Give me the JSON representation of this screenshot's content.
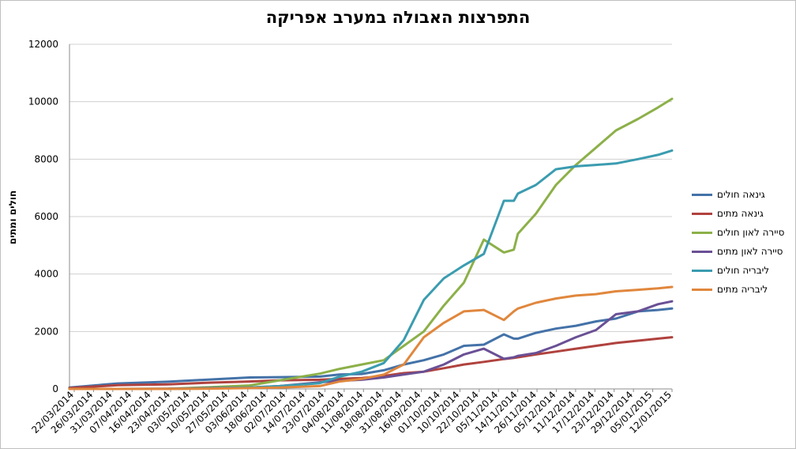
{
  "chart_data": {
    "type": "line",
    "title": "התפרצות האבולה במערב אפריקה",
    "xlabel": "",
    "ylabel": "חולים ומתים",
    "ylim": [
      0,
      12000
    ],
    "yticks": [
      "0",
      "2000",
      "4000",
      "6000",
      "8000",
      "10000",
      "12000"
    ],
    "grid": "horizontal",
    "legend_position": "right",
    "x": [
      "2014-03-22",
      "2014-04-15",
      "2014-05-10",
      "2014-06-01",
      "2014-06-20",
      "2014-07-05",
      "2014-07-25",
      "2014-08-04",
      "2014-08-15",
      "2014-08-26",
      "2014-09-05",
      "2014-09-15",
      "2014-09-25",
      "2014-10-05",
      "2014-10-15",
      "2014-10-25",
      "2014-10-30",
      "2014-11-01",
      "2014-11-10",
      "2014-11-20",
      "2014-11-30",
      "2014-12-10",
      "2014-12-20",
      "2014-12-31",
      "2015-01-10",
      "2015-01-17"
    ],
    "xticks": [
      "22/03/2014",
      "26/03/2014",
      "31/03/2014",
      "07/04/2014",
      "16/04/2014",
      "23/04/2014",
      "03/05/2014",
      "10/05/2014",
      "27/05/2014",
      "03/06/2014",
      "18/06/2014",
      "02/07/2014",
      "14/07/2014",
      "23/07/2014",
      "04/08/2014",
      "11/08/2014",
      "18/08/2014",
      "31/08/2014",
      "16/09/2014",
      "01/10/2014",
      "10/10/2014",
      "22/10/2014",
      "05/11/2014",
      "14/11/2014",
      "26/11/2014",
      "05/12/2014",
      "11/12/2014",
      "17/12/2014",
      "23/12/2014",
      "29/12/2014",
      "05/01/2015",
      "12/01/2015"
    ],
    "series": [
      {
        "name": "גינאה חולים",
        "color": "#4472a8",
        "values": [
          49,
          190,
          250,
          330,
          400,
          410,
          430,
          500,
          520,
          650,
          850,
          1000,
          1200,
          1500,
          1540,
          1900,
          1750,
          1750,
          1950,
          2100,
          2200,
          2350,
          2450,
          2700,
          2750,
          2800
        ]
      },
      {
        "name": "גינאה מתים",
        "color": "#b0423e",
        "values": [
          29,
          130,
          160,
          220,
          260,
          300,
          320,
          350,
          380,
          450,
          550,
          600,
          720,
          850,
          940,
          1040,
          1080,
          1100,
          1200,
          1300,
          1400,
          1500,
          1600,
          1680,
          1750,
          1800
        ]
      },
      {
        "name": "סיירה לאון חולים",
        "color": "#8cb049",
        "values": [
          0,
          0,
          5,
          60,
          120,
          300,
          530,
          700,
          850,
          1000,
          1500,
          2000,
          2900,
          3700,
          5200,
          4750,
          4850,
          5400,
          6100,
          7100,
          7800,
          8400,
          9000,
          9400,
          9800,
          10100
        ]
      },
      {
        "name": "סיירה לאון מתים",
        "color": "#6a5095",
        "values": [
          0,
          0,
          5,
          30,
          50,
          100,
          230,
          280,
          320,
          400,
          500,
          600,
          850,
          1200,
          1400,
          1050,
          1100,
          1150,
          1250,
          1500,
          1800,
          2050,
          2600,
          2700,
          2950,
          3050
        ]
      },
      {
        "name": "ליבריה חולים",
        "color": "#3b9cb0",
        "values": [
          0,
          0,
          0,
          20,
          50,
          100,
          200,
          430,
          600,
          900,
          1700,
          3100,
          3850,
          4300,
          4700,
          6550,
          6550,
          6800,
          7100,
          7650,
          7750,
          7800,
          7850,
          8000,
          8150,
          8300
        ]
      },
      {
        "name": "ליבריה מתים",
        "color": "#e0873d",
        "values": [
          0,
          0,
          0,
          10,
          30,
          50,
          100,
          260,
          350,
          500,
          850,
          1800,
          2300,
          2700,
          2750,
          2400,
          2700,
          2800,
          3000,
          3150,
          3250,
          3300,
          3400,
          3450,
          3500,
          3550
        ]
      }
    ]
  }
}
